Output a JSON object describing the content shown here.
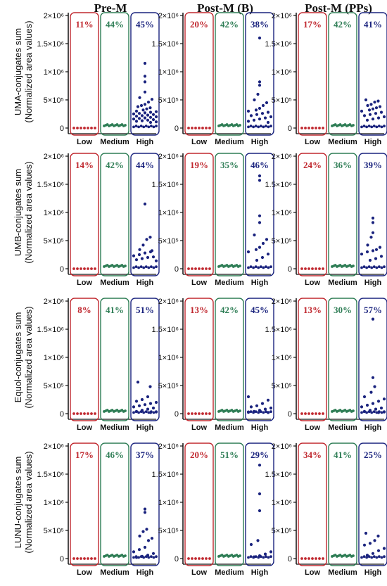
{
  "colors": {
    "low": "#c0282f",
    "medium": "#2e7d55",
    "high": "#1a237e",
    "axis": "#111111"
  },
  "chart_data": {
    "type": "scatter",
    "columns": [
      "Pre-M",
      "Post-M (B)",
      "Post-M (PPs)"
    ],
    "rows": [
      "UMA-conjugates sum\n(Normalized area values)",
      "UMB-conjugates sum\n(Normalized area values)",
      "Equol-conjugates sum\n(Normalized area values)",
      "LUNU-conjugates sum\n(Normalized area values)"
    ],
    "categories": [
      "Low",
      "Medium",
      "High"
    ],
    "y_ticks": [
      0,
      500000,
      1000000,
      1500000,
      2000000
    ],
    "y_tick_labels": [
      "0",
      "5×10⁵",
      "1×10⁶",
      "1.5×10⁶",
      "2×10⁶"
    ],
    "ylim": [
      0,
      2000000
    ],
    "percentages": [
      [
        [
          "11%",
          "44%",
          "45%"
        ],
        [
          "20%",
          "42%",
          "38%"
        ],
        [
          "17%",
          "42%",
          "41%"
        ]
      ],
      [
        [
          "14%",
          "42%",
          "44%"
        ],
        [
          "19%",
          "35%",
          "46%"
        ],
        [
          "24%",
          "36%",
          "39%"
        ]
      ],
      [
        [
          "8%",
          "41%",
          "51%"
        ],
        [
          "13%",
          "42%",
          "45%"
        ],
        [
          "13%",
          "30%",
          "57%"
        ]
      ],
      [
        [
          "17%",
          "46%",
          "37%"
        ],
        [
          "20%",
          "51%",
          "29%"
        ],
        [
          "34%",
          "41%",
          "25%"
        ]
      ]
    ],
    "high_values": [
      [
        [
          1150000,
          920000,
          820000,
          640000,
          540000,
          510000,
          460000,
          420000,
          400000,
          380000,
          360000,
          340000,
          320000,
          300000,
          290000,
          280000,
          270000,
          260000,
          250000,
          240000,
          230000,
          220000,
          210000,
          200000,
          190000,
          180000,
          170000,
          160000,
          150000,
          140000,
          130000,
          120000,
          110000,
          100000
        ],
        [
          1600000,
          820000,
          760000,
          600000,
          500000,
          450000,
          400000,
          350000,
          320000,
          300000,
          280000,
          260000,
          240000,
          220000,
          200000,
          180000,
          160000,
          140000,
          120000,
          100000
        ],
        [
          500000,
          480000,
          460000,
          420000,
          400000,
          380000,
          360000,
          340000,
          320000,
          300000,
          280000,
          260000,
          240000,
          220000,
          200000,
          180000,
          160000,
          140000
        ]
      ],
      [
        [
          1150000,
          560000,
          520000,
          420000,
          340000,
          320000,
          300000,
          280000,
          250000,
          230000,
          210000,
          200000,
          180000,
          160000,
          140000
        ],
        [
          1650000,
          1570000,
          940000,
          820000,
          600000,
          520000,
          450000,
          380000,
          340000,
          300000,
          260000,
          200000,
          150000
        ],
        [
          900000,
          820000,
          640000,
          560000,
          420000,
          380000,
          340000,
          320000,
          300000,
          260000,
          220000,
          180000,
          150000
        ]
      ],
      [
        [
          560000,
          480000,
          300000,
          250000,
          220000,
          200000,
          180000,
          160000,
          140000,
          120000,
          100000,
          80000,
          60000,
          40000,
          30000,
          20000
        ],
        [
          300000,
          240000,
          180000,
          140000,
          120000,
          100000,
          80000,
          60000,
          40000,
          30000,
          20000
        ],
        [
          1680000,
          640000,
          480000,
          380000,
          300000,
          260000,
          220000,
          180000,
          150000,
          120000,
          100000,
          80000,
          60000,
          40000,
          30000,
          20000
        ]
      ],
      [
        [
          880000,
          820000,
          520000,
          480000,
          400000,
          360000,
          320000,
          200000,
          160000,
          120000,
          90000,
          60000,
          40000,
          20000
        ],
        [
          1660000,
          1150000,
          850000,
          320000,
          250000,
          120000,
          80000,
          50000,
          30000
        ],
        [
          450000,
          400000,
          320000,
          270000,
          240000,
          180000,
          140000,
          90000,
          60000
        ]
      ]
    ],
    "medium_level": 50000,
    "low_level": 0
  }
}
